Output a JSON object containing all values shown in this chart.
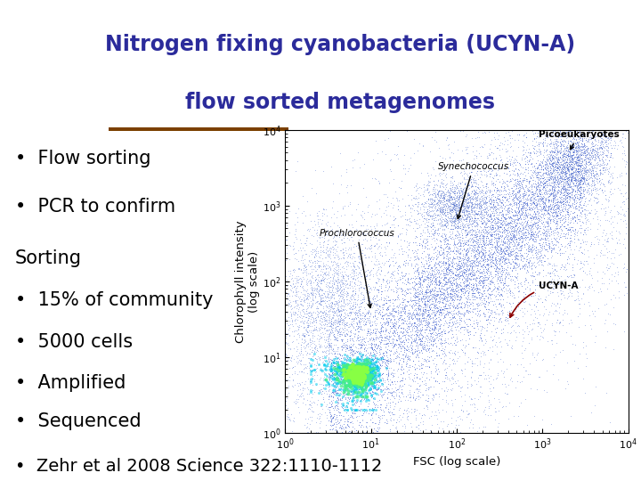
{
  "title_line1": "Nitrogen fixing cyanobacteria (UCYN-A)",
  "title_line2": "flow sorted metagenomes",
  "title_color": "#2b2b9b",
  "title_fontsize": 17,
  "bg_color": "#ffffff",
  "divider_color": "#7B4000",
  "bullets": [
    "•  Flow sorting",
    "•  PCR to confirm",
    "Sorting",
    "•  15% of community",
    "•  5000 cells",
    "•  Amplified",
    "•  Sequenced",
    "•  Zehr et al 2008 Science 322:1110-1112"
  ],
  "bullet_fontsizes": [
    15,
    15,
    15,
    15,
    15,
    15,
    15,
    14
  ],
  "bullet_fontweights": [
    "normal",
    "normal",
    "normal",
    "normal",
    "normal",
    "normal",
    "normal",
    "normal"
  ],
  "bullet_color": "#000000",
  "xlabel": "FSC (log scale)",
  "ylabel": "Chlorophyll intensity\n(log scale)",
  "axis_label_fontsize": 9.5,
  "plot_dot_color": "#4466dd",
  "plot_bg_color": "#ffffff"
}
